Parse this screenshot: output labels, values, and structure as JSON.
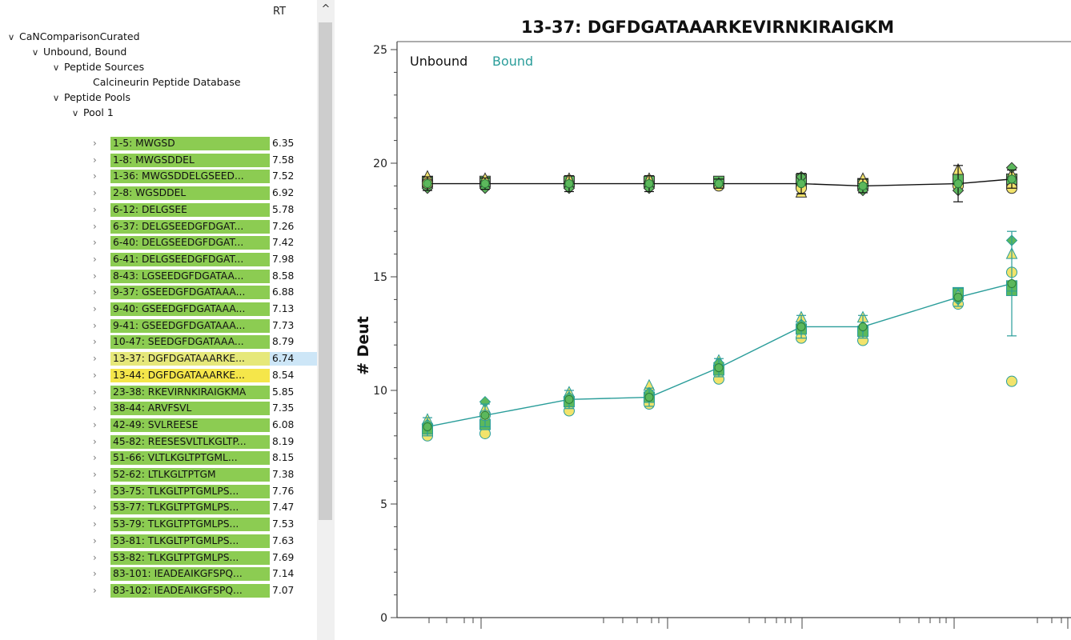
{
  "tree": {
    "rt_header": "RT",
    "nodes": [
      {
        "label": "CaNComparisonCurated",
        "expanded": true,
        "level": 0
      },
      {
        "label": "Unbound, Bound",
        "expanded": true,
        "level": 1
      },
      {
        "label": "Peptide Sources",
        "expanded": true,
        "level": 2
      },
      {
        "label": "Calcineurin Peptide Database",
        "expanded": null,
        "level": 3
      },
      {
        "label": "Peptide Pools",
        "expanded": true,
        "level": 2
      },
      {
        "label": "Pool 1",
        "expanded": true,
        "level": 3
      }
    ],
    "peptides": [
      {
        "label": "1-5: MWGSD",
        "rt": "6.35"
      },
      {
        "label": "1-8: MWGSDDEL",
        "rt": "7.58"
      },
      {
        "label": "1-36: MWGSDDELGSEED...",
        "rt": "7.52"
      },
      {
        "label": "2-8: WGSDDEL",
        "rt": "6.92"
      },
      {
        "label": "6-12: DELGSEE",
        "rt": "5.78"
      },
      {
        "label": "6-37: DELGSEEDGFDGAT...",
        "rt": "7.26"
      },
      {
        "label": "6-40: DELGSEEDGFDGAT...",
        "rt": "7.42"
      },
      {
        "label": "6-41: DELGSEEDGFDGAT...",
        "rt": "7.98"
      },
      {
        "label": "8-43: LGSEEDGFDGATAA...",
        "rt": "8.58"
      },
      {
        "label": "9-37: GSEEDGFDGATAAA...",
        "rt": "6.88"
      },
      {
        "label": "9-40: GSEEDGFDGATAAA...",
        "rt": "7.13"
      },
      {
        "label": "9-41: GSEEDGFDGATAAA...",
        "rt": "7.73"
      },
      {
        "label": "10-47: SEEDGFDGATAAA...",
        "rt": "8.79"
      },
      {
        "label": "13-37: DGFDGATAAARKE...",
        "rt": "6.74",
        "state": "selected"
      },
      {
        "label": "13-44: DGFDGATAAARKE...",
        "rt": "8.54",
        "state": "highlight"
      },
      {
        "label": "23-38: RKEVIRNKIRAIGKMA",
        "rt": "5.85"
      },
      {
        "label": "38-44: ARVFSVL",
        "rt": "7.35"
      },
      {
        "label": "42-49: SVLREESE",
        "rt": "6.08"
      },
      {
        "label": "45-82: REESESVLTLKGLTP...",
        "rt": "8.19"
      },
      {
        "label": "51-66: VLTLKGLTPTGML...",
        "rt": "8.15"
      },
      {
        "label": "52-62: LTLKGLTPTGM",
        "rt": "7.38"
      },
      {
        "label": "53-75: TLKGLTPTGMLPS...",
        "rt": "7.76"
      },
      {
        "label": "53-77: TLKGLTPTGMLPS...",
        "rt": "7.47"
      },
      {
        "label": "53-79: TLKGLTPTGMLPS...",
        "rt": "7.53"
      },
      {
        "label": "53-81: TLKGLTPTGMLPS...",
        "rt": "7.63"
      },
      {
        "label": "53-82: TLKGLTPTGMLPS...",
        "rt": "7.69"
      },
      {
        "label": "83-101: IEADEAIKGFSPQ...",
        "rt": "7.14"
      },
      {
        "label": "83-102: IEADEAIKGFSPQ...",
        "rt": "7.07"
      }
    ]
  },
  "chart_data": {
    "type": "scatter",
    "title": "13-37: DGFDGATAAARKEVIRNKIRAIGKM",
    "ylabel": "# Deut",
    "xlabel": "",
    "ylim": [
      0,
      25
    ],
    "yticks": [
      "0",
      "5",
      "10",
      "15",
      "20",
      "25"
    ],
    "x_log_scale": true,
    "legend": [
      "Unbound",
      "Bound"
    ],
    "legend_position": "top-left",
    "colors": {
      "Unbound": "#111111",
      "Bound": "#2a9d9a",
      "marker_fill_green": "#5cb85c",
      "marker_fill_yellow": "#f2e36b"
    },
    "series": [
      {
        "name": "Unbound",
        "mean": [
          19.1,
          19.1,
          19.1,
          19.1,
          19.1,
          19.1,
          19.0,
          19.1,
          19.3
        ],
        "err": [
          0.3,
          0.25,
          0.35,
          0.35,
          0.2,
          0.45,
          0.3,
          0.8,
          0.4
        ],
        "replicates": [
          [
            19.0,
            19.2,
            19.4,
            18.9,
            19.1
          ],
          [
            19.0,
            19.2,
            19.3,
            18.9
          ],
          [
            19.0,
            19.2,
            19.3,
            18.9
          ],
          [
            19.0,
            19.2,
            19.3,
            18.9
          ],
          [
            19.0,
            19.2,
            19.1
          ],
          [
            19.0,
            19.3,
            18.7,
            19.4,
            18.9
          ],
          [
            18.9,
            19.1,
            19.3,
            18.8
          ],
          [
            19.0,
            19.3,
            19.7,
            18.8
          ],
          [
            19.0,
            19.3,
            19.5,
            19.8,
            18.9
          ]
        ]
      },
      {
        "name": "Bound",
        "mean": [
          8.4,
          8.9,
          9.6,
          9.7,
          11.0,
          12.8,
          12.8,
          14.1,
          14.7
        ],
        "err": [
          0.4,
          0.5,
          0.4,
          0.4,
          0.4,
          0.5,
          0.5,
          0.4,
          2.3
        ],
        "replicates": [
          [
            8.0,
            8.3,
            8.7,
            8.5
          ],
          [
            8.1,
            8.5,
            9.2,
            9.5,
            8.9
          ],
          [
            9.1,
            9.5,
            9.9,
            9.7
          ],
          [
            9.4,
            9.7,
            10.2,
            9.9
          ],
          [
            10.5,
            10.9,
            11.3,
            11.2
          ],
          [
            12.3,
            12.7,
            13.2,
            12.9
          ],
          [
            12.2,
            12.6,
            13.2,
            12.8
          ],
          [
            13.8,
            14.3,
            14.2,
            14.0
          ],
          [
            10.4,
            14.4,
            16.0,
            16.6,
            15.2,
            14.6
          ]
        ]
      }
    ]
  }
}
